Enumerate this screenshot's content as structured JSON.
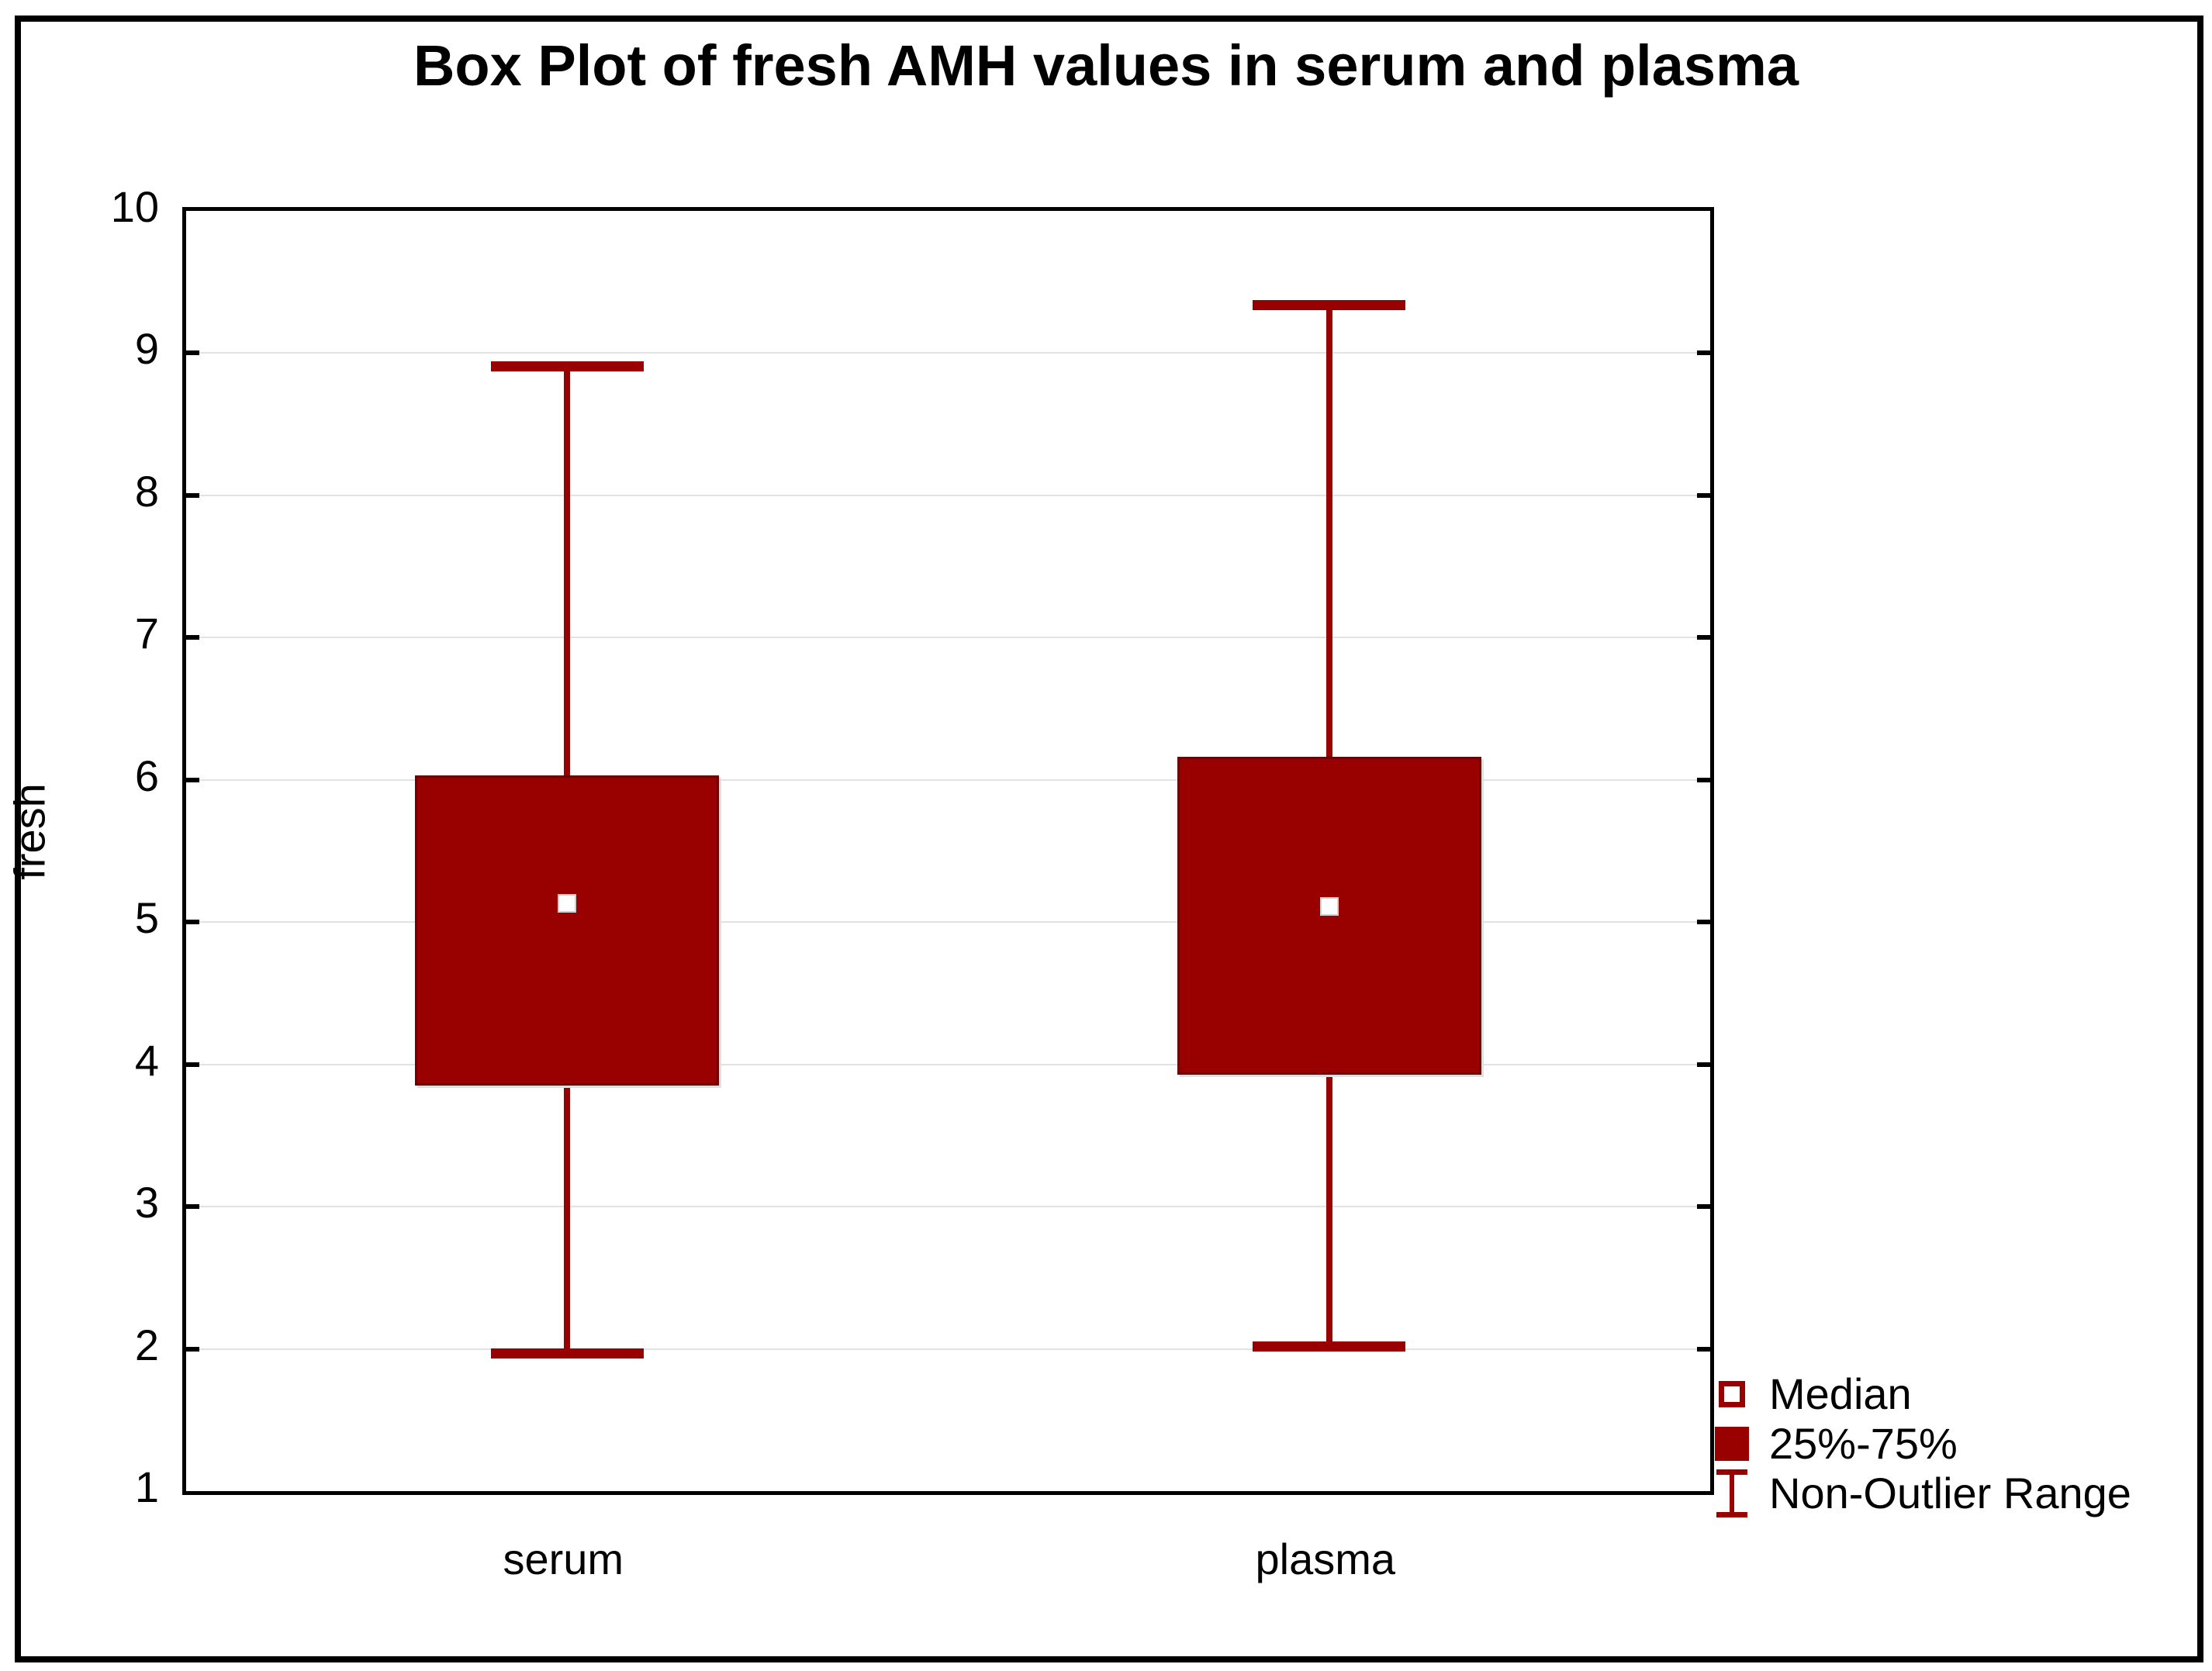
{
  "chart_data": {
    "type": "boxplot",
    "title": "Box Plot of fresh AMH values in serum and plasma",
    "xlabel": "",
    "ylabel": "fresh",
    "ylim": [
      1,
      10
    ],
    "yticks": [
      1,
      2,
      3,
      4,
      5,
      6,
      7,
      8,
      9,
      10
    ],
    "grid": "horizontal-on",
    "categories": [
      "serum",
      "plasma"
    ],
    "series": [
      {
        "category": "serum",
        "median": 5.13,
        "q1": 3.85,
        "q3": 6.03,
        "whisker_low": 1.97,
        "whisker_high": 8.91
      },
      {
        "category": "plasma",
        "median": 5.11,
        "q1": 3.93,
        "q3": 6.16,
        "whisker_low": 2.02,
        "whisker_high": 9.34
      }
    ],
    "legend_position": "bottom-right-outside",
    "legend": [
      {
        "symbol": "open-square",
        "label": "Median"
      },
      {
        "symbol": "filled-square",
        "label": "25%-75%"
      },
      {
        "symbol": "whisker-range",
        "label": "Non-Outlier Range"
      }
    ],
    "colors": {
      "box_fill": "#990000",
      "box_border": "#6e0202",
      "whisker": "#990000",
      "median_fill": "#ffffff",
      "gridline": "#e2e2e2",
      "frame": "#000000",
      "text": "#000000",
      "background": "#ffffff"
    }
  }
}
